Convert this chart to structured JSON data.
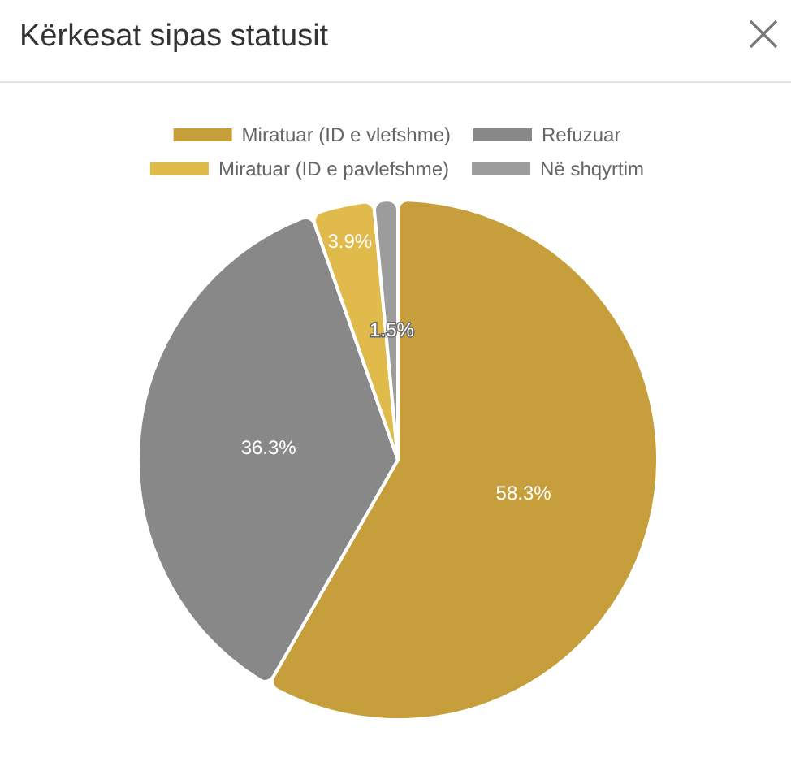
{
  "chart_data": {
    "type": "pie",
    "title": "Kërkesat sipas statusit",
    "categories": [
      "Miratuar (ID e vlefshme)",
      "Refuzuar",
      "Miratuar (ID e pavlefshme)",
      "Në shqyrtim"
    ],
    "values": [
      58.3,
      36.3,
      3.9,
      1.5
    ],
    "colors": [
      "#c69f3c",
      "#888888",
      "#e0bb4b",
      "#9c9c9c"
    ],
    "value_labels": [
      "58.3%",
      "36.3%",
      "3.9%",
      "1.5%"
    ],
    "legend": "top"
  }
}
